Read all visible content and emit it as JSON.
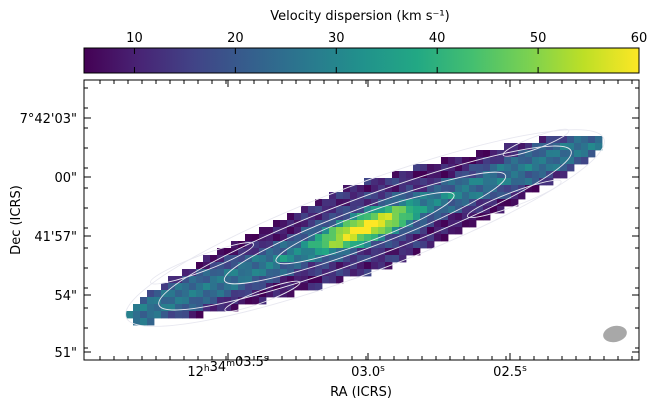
{
  "chart_data": {
    "type": "heatmap",
    "title": "",
    "colorbar": {
      "label": "Velocity dispersion (km s⁻¹)",
      "ticks": [
        "10",
        "20",
        "30",
        "40",
        "50",
        "60"
      ],
      "tick_values": [
        10,
        20,
        30,
        40,
        50,
        60
      ],
      "range": [
        5,
        60
      ],
      "colormap": "viridis"
    },
    "xlabel": "RA (ICRS)",
    "ylabel": "Dec (ICRS)",
    "x_ticks": [
      {
        "text": "12h34m03.5s",
        "main": "12",
        "h": "h",
        "min": "34",
        "m": "m",
        "sec": "03.5",
        "s": "s"
      },
      {
        "text": "03.0s",
        "main": "03.0",
        "s": "s"
      },
      {
        "text": "02.5s",
        "main": "02.5",
        "s": "s"
      }
    ],
    "y_ticks": [
      "7°42'03\"",
      "00\"",
      "41'57\"",
      "54\"",
      "51\""
    ],
    "contour_color": "#e8e8f0",
    "beam_color": "#a8a8a8",
    "colors": {
      "low": "#440154",
      "mid": "#21918c",
      "high": "#fde725"
    }
  }
}
